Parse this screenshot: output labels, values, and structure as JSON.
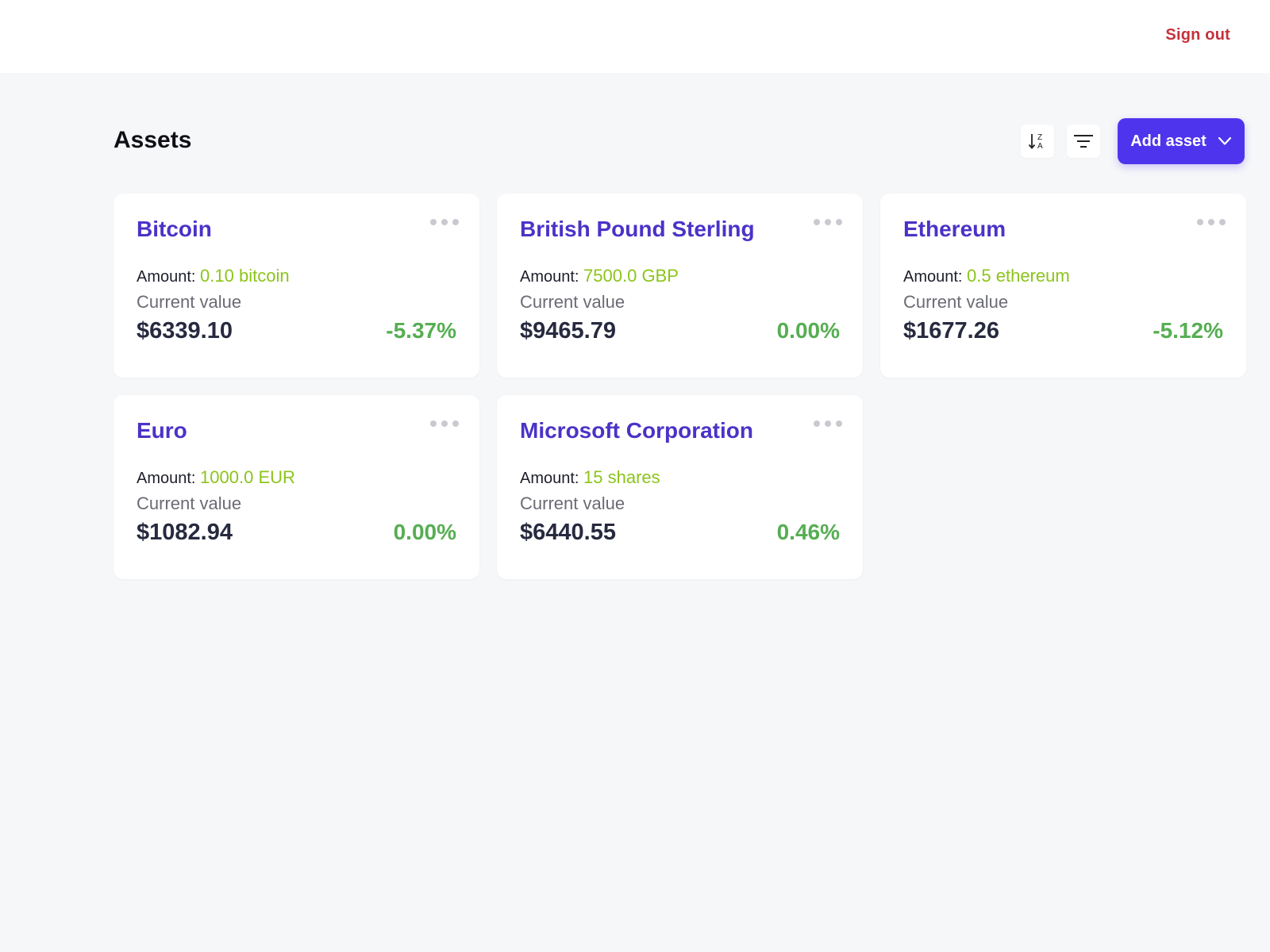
{
  "header": {
    "signout_label": "Sign out"
  },
  "main": {
    "title": "Assets",
    "toolbar": {
      "sort_icon": "sort-z-a-icon",
      "filter_icon": "filter-icon",
      "add_label": "Add asset",
      "add_icon": "chevron-down-icon"
    },
    "amount_label": "Amount:",
    "current_value_label": "Current value",
    "assets": [
      {
        "name": "Bitcoin",
        "amount": "0.10 bitcoin",
        "value": "$6339.10",
        "change": "-5.37%"
      },
      {
        "name": "British Pound Sterling",
        "amount": "7500.0 GBP",
        "value": "$9465.79",
        "change": "0.00%"
      },
      {
        "name": "Ethereum",
        "amount": "0.5 ethereum",
        "value": "$1677.26",
        "change": "-5.12%"
      },
      {
        "name": "Euro",
        "amount": "1000.0 EUR",
        "value": "$1082.94",
        "change": "0.00%"
      },
      {
        "name": "Microsoft Corporation",
        "amount": "15 shares",
        "value": "$6440.55",
        "change": "0.46%"
      }
    ]
  },
  "colors": {
    "accent": "#4f34ee",
    "asset_name": "#4a33c7",
    "amount_value": "#8cc41a",
    "change_positive": "#56ae52",
    "signout": "#c4313b",
    "background": "#f6f7f9"
  }
}
